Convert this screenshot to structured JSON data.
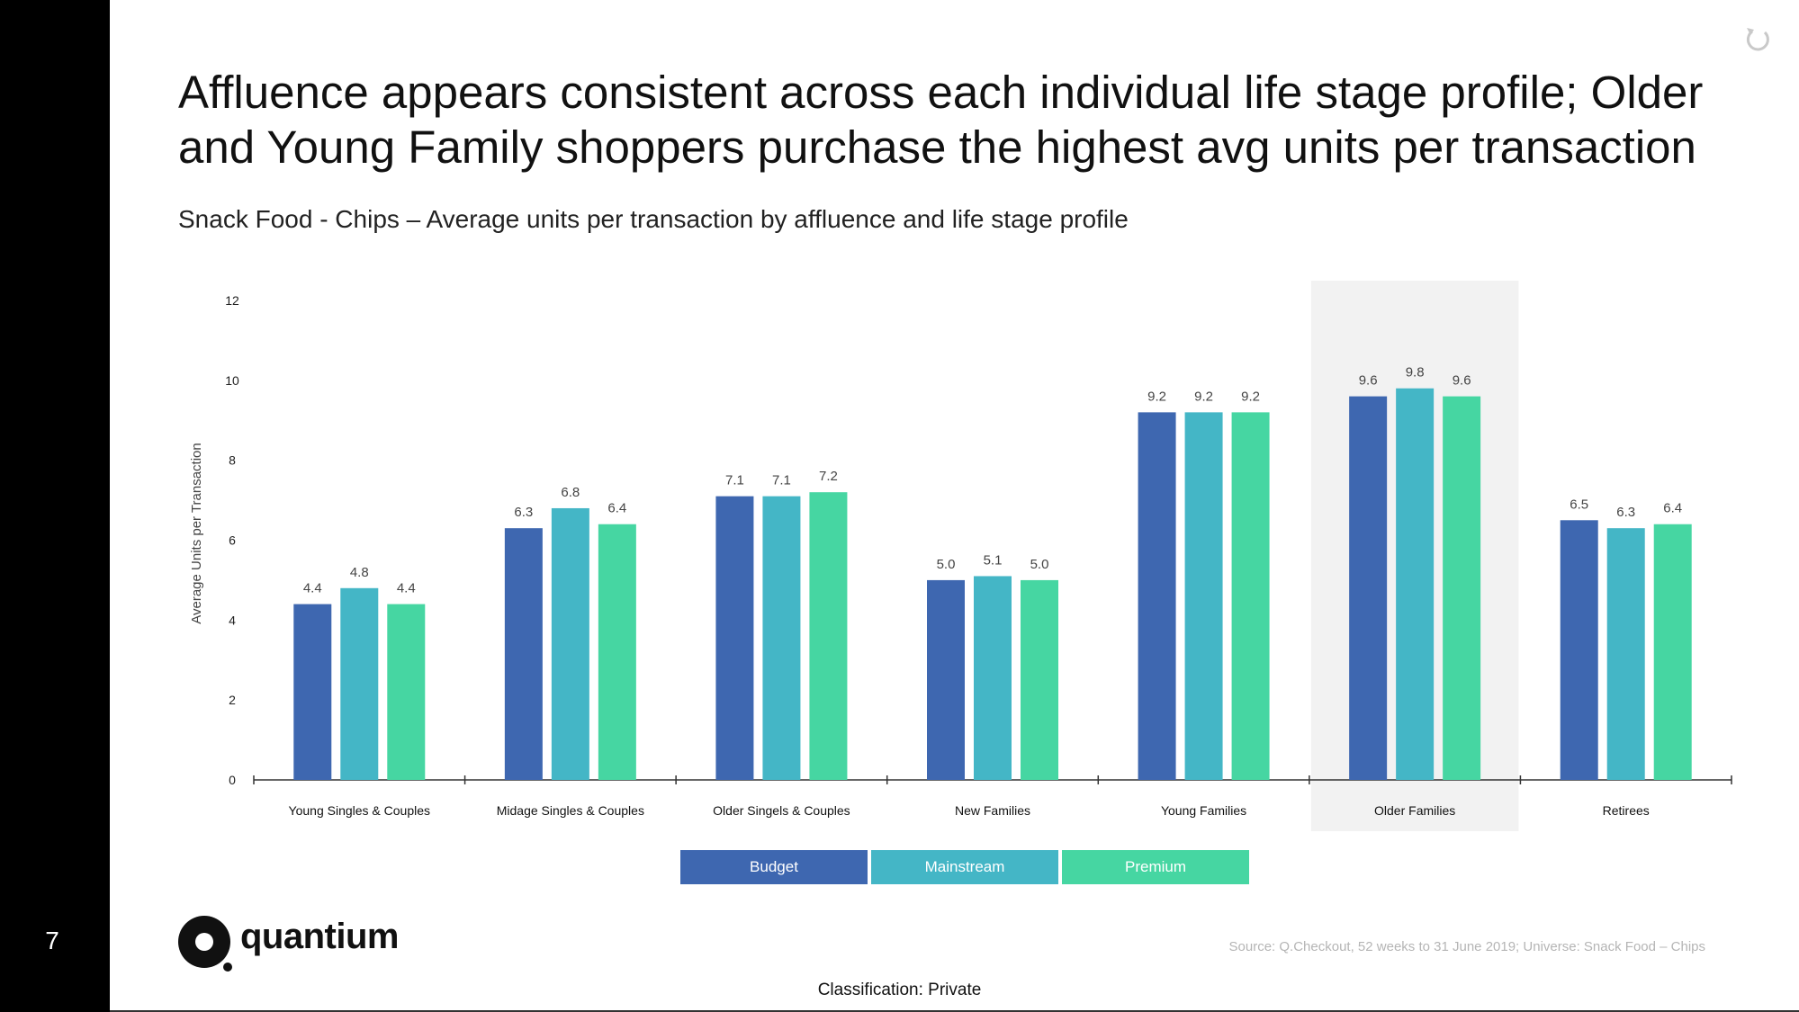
{
  "slide": {
    "page_number": "7",
    "headline": "Affluence appears consistent across each individual life stage profile; Older and Young Family shoppers purchase the highest avg units per transaction",
    "subtitle": "Snack Food - Chips – Average units per transaction by affluence and life stage profile",
    "source": "Source: Q.Checkout, 52 weeks to 31 June 2019; Universe: Snack Food – Chips",
    "classification": "Classification: Private",
    "logo_text": "quantium",
    "refresh_icon": "refresh-icon"
  },
  "colors": {
    "Budget": "#3e67b0",
    "Mainstream": "#44b6c6",
    "Premium": "#46d6a2",
    "highlight": "#f2f2f2",
    "axis": "#333333"
  },
  "legend": [
    {
      "label": "Budget",
      "color": "#3e67b0"
    },
    {
      "label": "Mainstream",
      "color": "#44b6c6"
    },
    {
      "label": "Premium",
      "color": "#46d6a2"
    }
  ],
  "chart_data": {
    "type": "bar",
    "title": "",
    "xlabel": "",
    "ylabel": "Average Units per Transaction",
    "ylim": [
      0,
      12
    ],
    "yticks": [
      0,
      2,
      4,
      6,
      8,
      10,
      12
    ],
    "grid": false,
    "legend_position": "bottom",
    "highlighted_category": "Older Families",
    "categories": [
      "Young Singles & Couples",
      "Midage Singles & Couples",
      "Older Singels & Couples",
      "New Families",
      "Young Families",
      "Older Families",
      "Retirees"
    ],
    "series": [
      {
        "name": "Budget",
        "values": [
          4.4,
          6.3,
          7.1,
          5.0,
          9.2,
          9.6,
          6.5
        ],
        "labels": [
          "4.4",
          "6.3",
          "7.1",
          "5.0",
          "9.2",
          "9.6",
          "6.5"
        ]
      },
      {
        "name": "Mainstream",
        "values": [
          4.8,
          6.8,
          7.1,
          5.1,
          9.2,
          9.8,
          6.3
        ],
        "labels": [
          "4.8",
          "6.8",
          "7.1",
          "5.1",
          "9.2",
          "9.8",
          "6.3"
        ]
      },
      {
        "name": "Premium",
        "values": [
          4.4,
          6.4,
          7.2,
          5.0,
          9.2,
          9.6,
          6.4
        ],
        "labels": [
          "4.4",
          "6.4",
          "7.2",
          "5.0",
          "9.2",
          "9.6",
          "6.4"
        ]
      }
    ]
  }
}
